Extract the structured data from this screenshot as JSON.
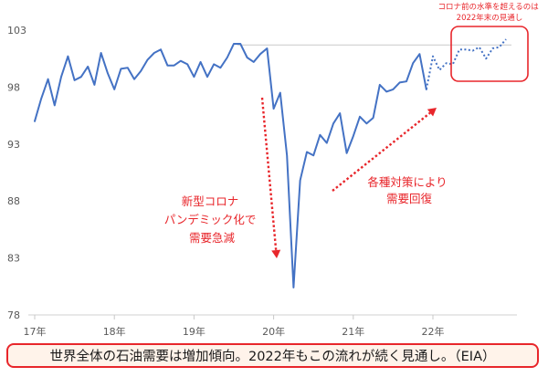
{
  "chart_data": {
    "type": "line",
    "title": "",
    "xlabel": "",
    "ylabel": "",
    "ylim": [
      78,
      103
    ],
    "yticks": [
      78,
      83,
      88,
      93,
      98,
      103
    ],
    "x_ticks": [
      "17年",
      "18年",
      "19年",
      "20年",
      "21年",
      "22年"
    ],
    "grid": false,
    "reference_line": 101.7,
    "series": [
      {
        "style": "solid",
        "color": "#4472c4",
        "x": [
          2017.0,
          2017.083,
          2017.167,
          2017.25,
          2017.333,
          2017.417,
          2017.5,
          2017.583,
          2017.667,
          2017.75,
          2017.833,
          2017.917,
          2018.0,
          2018.083,
          2018.167,
          2018.25,
          2018.333,
          2018.417,
          2018.5,
          2018.583,
          2018.667,
          2018.75,
          2018.833,
          2018.917,
          2019.0,
          2019.083,
          2019.167,
          2019.25,
          2019.333,
          2019.417,
          2019.5,
          2019.583,
          2019.667,
          2019.75,
          2019.833,
          2019.917,
          2020.0,
          2020.083,
          2020.167,
          2020.25,
          2020.333,
          2020.417,
          2020.5,
          2020.583,
          2020.667,
          2020.75,
          2020.833,
          2020.917,
          2021.0,
          2021.083,
          2021.167,
          2021.25,
          2021.333,
          2021.417,
          2021.5,
          2021.583,
          2021.667,
          2021.75,
          2021.833,
          2021.917
        ],
        "values": [
          95.0,
          97.0,
          98.7,
          96.4,
          98.9,
          100.7,
          98.6,
          98.9,
          99.8,
          98.2,
          101.0,
          99.2,
          97.8,
          99.6,
          99.7,
          98.7,
          99.4,
          100.4,
          101.0,
          101.3,
          99.9,
          99.9,
          100.3,
          100.0,
          98.9,
          100.2,
          98.9,
          100.0,
          99.7,
          100.6,
          101.8,
          101.8,
          100.6,
          100.2,
          100.9,
          101.4,
          96.1,
          97.5,
          92.0,
          80.4,
          89.8,
          92.3,
          92.0,
          93.8,
          93.1,
          94.8,
          95.7,
          92.2,
          93.7,
          95.4,
          94.8,
          95.3,
          98.2,
          97.6,
          97.8,
          98.4,
          98.5,
          100.1,
          100.9,
          97.8
        ]
      },
      {
        "style": "dotted",
        "color": "#4472c4",
        "x": [
          2021.917,
          2022.0,
          2022.083,
          2022.167,
          2022.25,
          2022.333,
          2022.417,
          2022.5,
          2022.583,
          2022.667,
          2022.75,
          2022.833,
          2022.917
        ],
        "values": [
          97.8,
          100.7,
          99.5,
          100.1,
          100.0,
          101.3,
          101.3,
          101.2,
          101.5,
          100.5,
          101.4,
          101.5,
          102.2
        ]
      }
    ],
    "annotations": [
      {
        "lines": [
          "新型コロナ",
          "パンデミック化で",
          "需要急減"
        ]
      },
      {
        "lines": [
          "各種対策により",
          "需要回復"
        ]
      },
      {
        "lines": [
          "コロナ前の水準を超えるのは",
          "2022年末の見通し"
        ]
      }
    ]
  },
  "footer": {
    "text": "世界全体の石油需要は増加傾向。2022年もこの流れが続く見通し。（EIA）"
  }
}
